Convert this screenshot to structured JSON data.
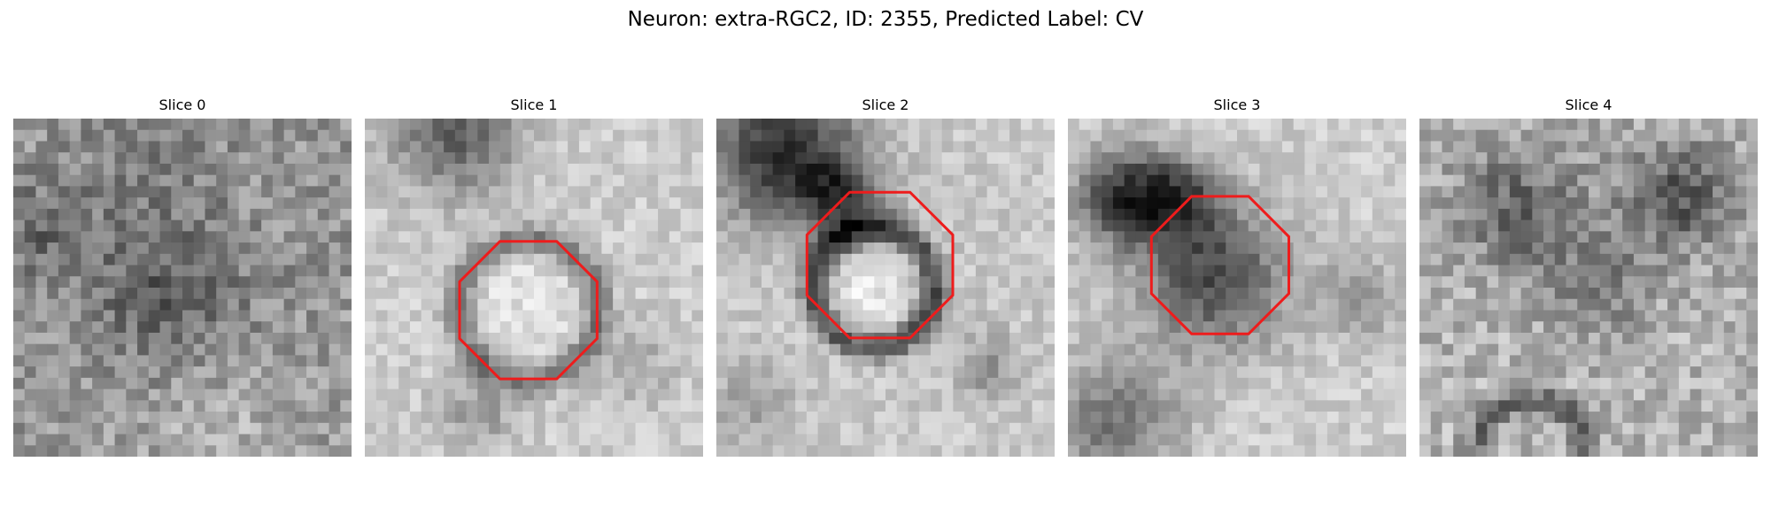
{
  "figure": {
    "title": "Neuron: extra-RGC2, ID: 2355, Predicted Label: CV"
  },
  "colors": {
    "outline": "#ee1c1c",
    "background": "#ffffff"
  },
  "slices": [
    {
      "label": "Slice 0",
      "has_outline": false
    },
    {
      "label": "Slice 1",
      "has_outline": true
    },
    {
      "label": "Slice 2",
      "has_outline": true
    },
    {
      "label": "Slice 3",
      "has_outline": true
    },
    {
      "label": "Slice 4",
      "has_outline": false
    }
  ]
}
